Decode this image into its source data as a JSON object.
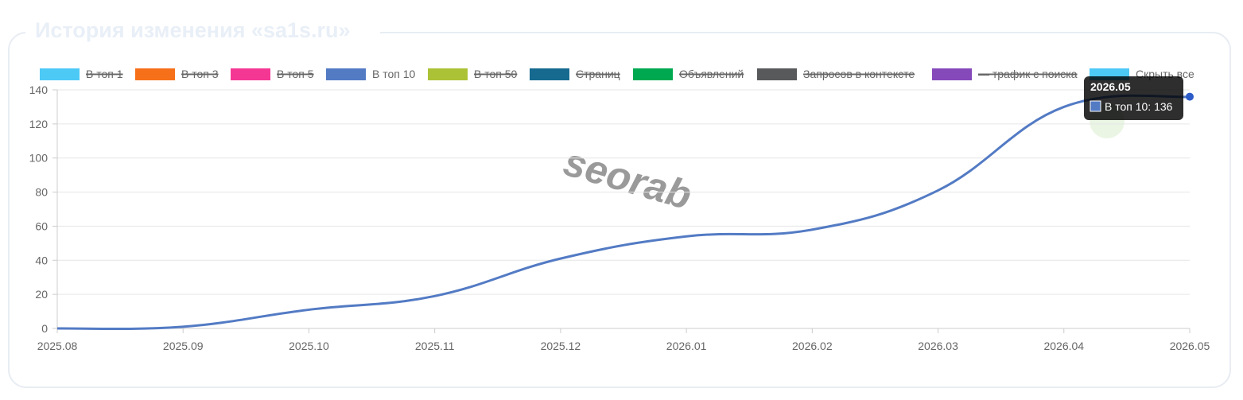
{
  "page": {
    "title": "История изменения «sa1s.ru»",
    "watermark": "seorab"
  },
  "chart_data": {
    "type": "line",
    "x": [
      "2025.08",
      "2025.09",
      "2025.10",
      "2025.11",
      "2025.12",
      "2026.01",
      "2026.02",
      "2026.03",
      "2026.04",
      "2026.05"
    ],
    "series": [
      {
        "name": "В топ 1",
        "color": "#4dc9f6",
        "hidden": true
      },
      {
        "name": "В топ 3",
        "color": "#f67019",
        "hidden": true
      },
      {
        "name": "В топ 5",
        "color": "#f53794",
        "hidden": true
      },
      {
        "name": "В топ 10",
        "color": "#537bc4",
        "hidden": false,
        "values": [
          0,
          1,
          11,
          19,
          41,
          54,
          58,
          81,
          130,
          136
        ]
      },
      {
        "name": "В топ 50",
        "color": "#acc236",
        "hidden": true
      },
      {
        "name": "Страниц",
        "color": "#166a8f",
        "hidden": true
      },
      {
        "name": "Объявлений",
        "color": "#00a950",
        "hidden": true
      },
      {
        "name": "Запросов в контексте",
        "color": "#58595b",
        "hidden": true
      },
      {
        "name": "— трафик с поиска",
        "color": "#8549ba",
        "hidden": true
      },
      {
        "name": "Скрыть все",
        "color": "#4dc9f6",
        "hidden": false
      }
    ],
    "ylim": [
      0,
      140
    ],
    "yticks": [
      0,
      20,
      40,
      60,
      80,
      100,
      120,
      140
    ],
    "grid": true,
    "tooltip": {
      "title": "2026.05",
      "label": "В топ 10: 136"
    }
  }
}
